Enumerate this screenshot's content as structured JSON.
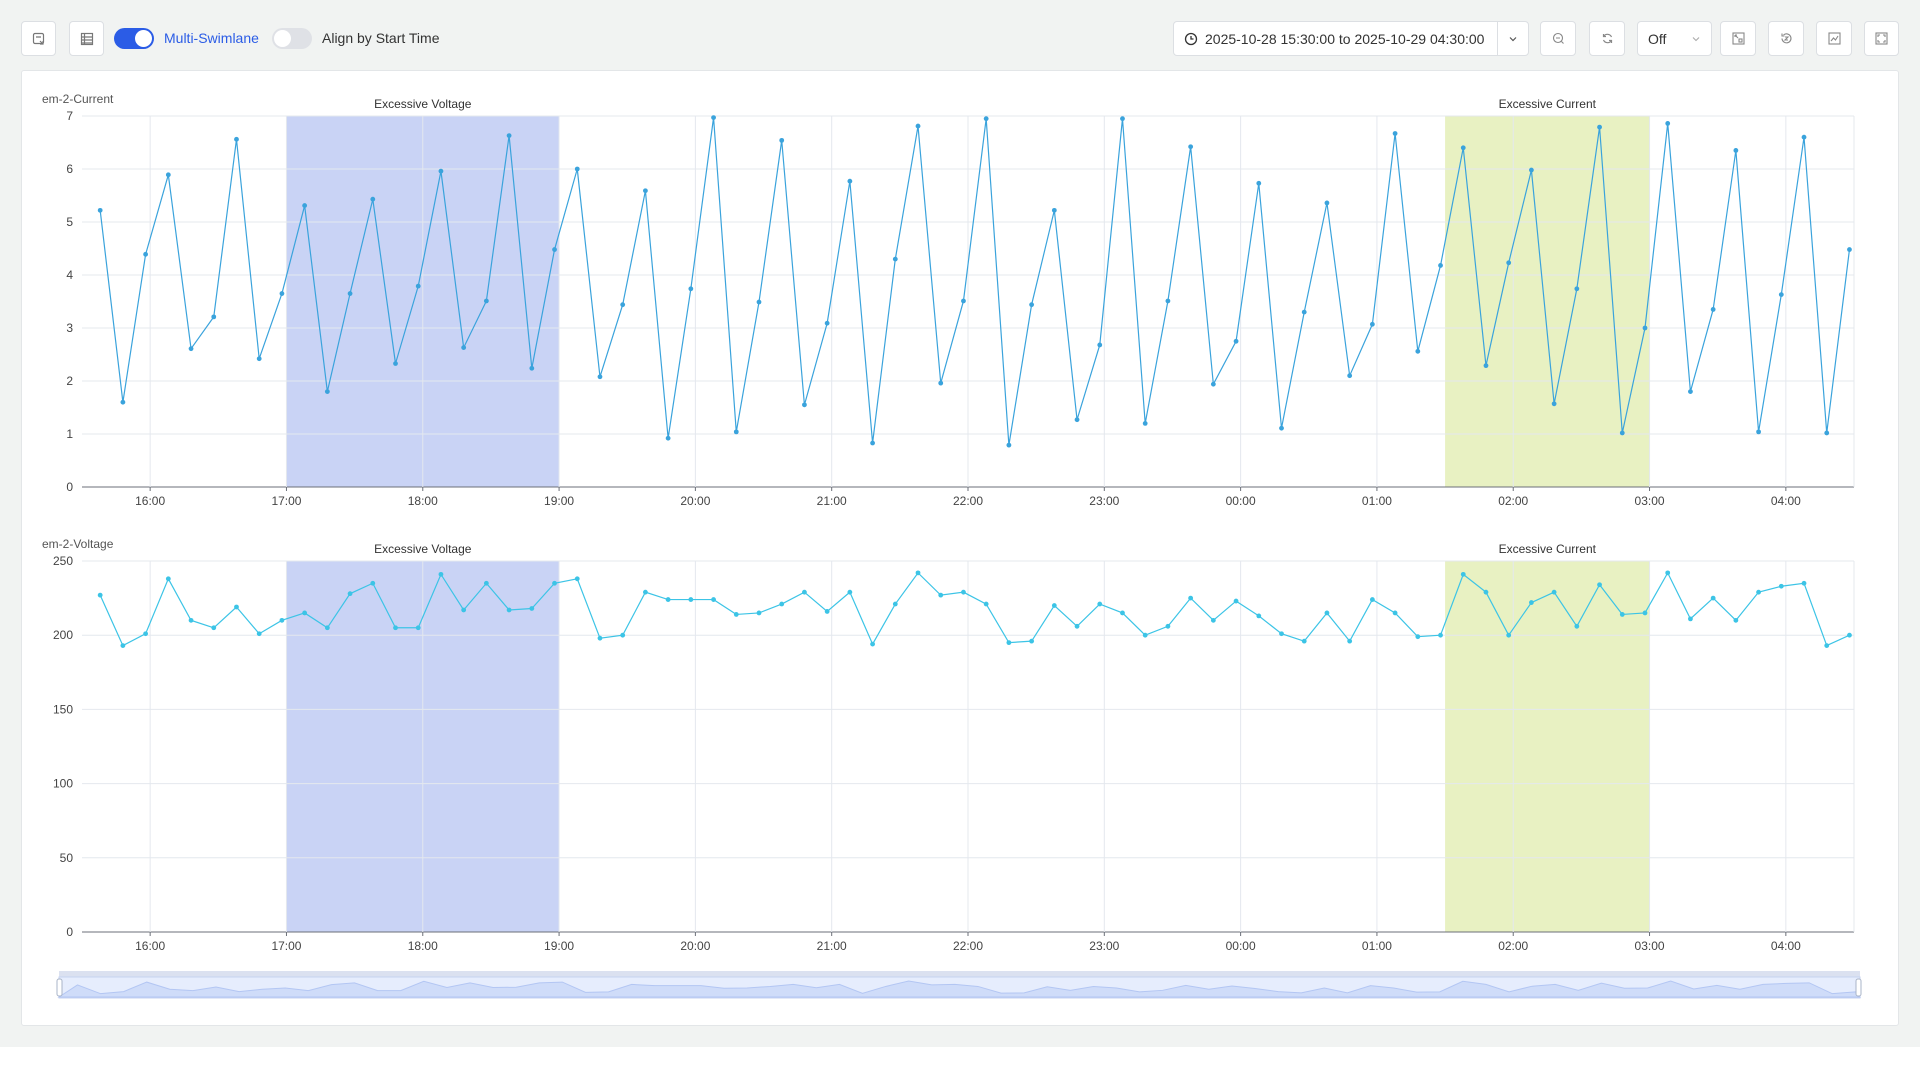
{
  "toolbar": {
    "export_icon": "export-image-icon",
    "table_icon": "table-icon",
    "multi_swimlane_label": "Multi-Swimlane",
    "multi_swimlane_on": true,
    "align_label": "Align by Start Time",
    "align_on": false,
    "time_range": "2025-10-28 15:30:00 to 2025-10-29 04:30:00",
    "auto_refresh": "Off",
    "accent_color": "#2b5ce6"
  },
  "chart_data": [
    {
      "type": "line",
      "title": "em-2-Current",
      "x_start": "2025-10-28 15:38",
      "x_interval_minutes": 10,
      "xlim": [
        "15:30",
        "04:30"
      ],
      "x_ticks": [
        "16:00",
        "17:00",
        "18:00",
        "19:00",
        "20:00",
        "21:00",
        "22:00",
        "23:00",
        "00:00",
        "01:00",
        "02:00",
        "03:00",
        "04:00"
      ],
      "ylim": [
        0,
        7
      ],
      "y_ticks": [
        "0",
        "1",
        "2",
        "3",
        "4",
        "5",
        "6",
        "7"
      ],
      "grid": true,
      "color": "#3aa3dc",
      "values": [
        5.22,
        1.6,
        4.39,
        5.89,
        2.61,
        3.21,
        6.56,
        2.42,
        3.65,
        5.31,
        1.8,
        3.65,
        5.43,
        2.33,
        3.79,
        5.96,
        2.63,
        3.51,
        6.63,
        2.24,
        4.48,
        6.0,
        2.08,
        3.44,
        5.59,
        0.92,
        3.74,
        6.97,
        1.04,
        3.49,
        6.54,
        1.55,
        3.09,
        5.77,
        0.83,
        4.3,
        6.81,
        1.96,
        3.51,
        6.95,
        0.79,
        3.44,
        5.22,
        1.27,
        2.68,
        6.95,
        1.2,
        3.51,
        6.42,
        1.94,
        2.75,
        5.73,
        1.11,
        3.3,
        5.36,
        2.1,
        3.07,
        6.67,
        2.56,
        4.18,
        6.4,
        2.29,
        4.23,
        5.98,
        1.57,
        3.74,
        6.79,
        1.02,
        3.0,
        6.86,
        1.8,
        3.35,
        6.35,
        1.04,
        3.63,
        6.6,
        1.02,
        4.48
      ],
      "bands": [
        {
          "label": "Excessive Voltage",
          "from": "17:00",
          "to": "19:00",
          "color": "#c9d3f5"
        },
        {
          "label": "Excessive Current",
          "from": "01:30",
          "to": "03:00",
          "color": "#e8f1c2"
        }
      ]
    },
    {
      "type": "line",
      "title": "em-2-Voltage",
      "x_start": "2025-10-28 15:38",
      "x_interval_minutes": 10,
      "xlim": [
        "15:30",
        "04:30"
      ],
      "x_ticks": [
        "16:00",
        "17:00",
        "18:00",
        "19:00",
        "20:00",
        "21:00",
        "22:00",
        "23:00",
        "00:00",
        "01:00",
        "02:00",
        "03:00",
        "04:00"
      ],
      "ylim": [
        0,
        250
      ],
      "y_ticks": [
        "0",
        "50",
        "100",
        "150",
        "200",
        "250"
      ],
      "grid": true,
      "color": "#3cc4e6",
      "values": [
        227,
        193,
        201,
        238,
        210,
        205,
        219,
        201,
        210,
        215,
        205,
        228,
        235,
        205,
        205,
        241,
        217,
        235,
        217,
        218,
        235,
        238,
        198,
        200,
        229,
        224,
        224,
        224,
        214,
        215,
        221,
        229,
        216,
        229,
        194,
        221,
        242,
        227,
        229,
        221,
        195,
        196,
        220,
        206,
        221,
        215,
        200,
        206,
        225,
        210,
        223,
        213,
        201,
        196,
        215,
        196,
        224,
        215,
        199,
        200,
        241,
        229,
        200,
        222,
        229,
        206,
        234,
        214,
        215,
        242,
        211,
        225,
        210,
        229,
        233,
        235,
        193,
        200
      ],
      "bands": [
        {
          "label": "Excessive Voltage",
          "from": "17:00",
          "to": "19:00",
          "color": "#c9d3f5"
        },
        {
          "label": "Excessive Current",
          "from": "01:30",
          "to": "03:00",
          "color": "#e8f1c2"
        }
      ]
    }
  ]
}
